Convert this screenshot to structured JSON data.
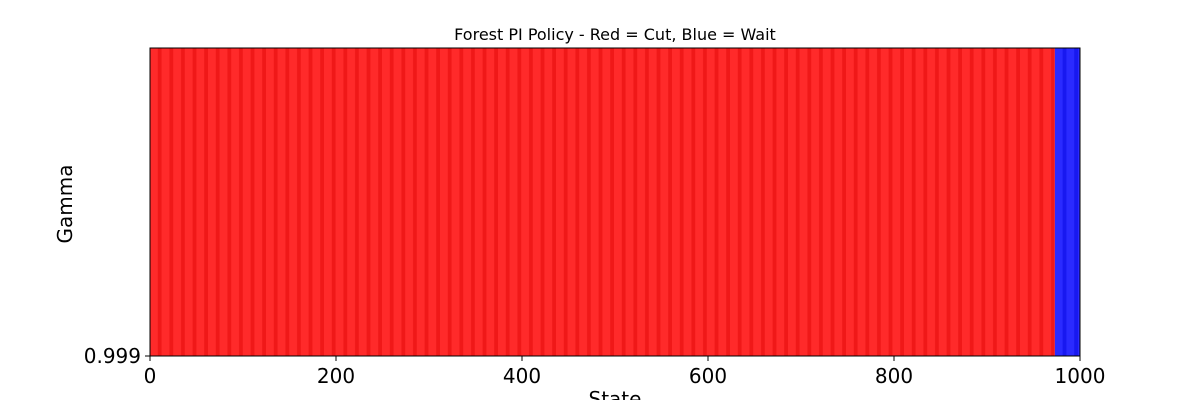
{
  "chart_data": {
    "type": "heatmap",
    "title": "Forest PI Policy - Red = Cut, Blue = Wait",
    "xlabel": "State",
    "ylabel": "Gamma",
    "xlim": [
      0,
      1000
    ],
    "x_ticks": [
      "0",
      "200",
      "400",
      "600",
      "800",
      "1000"
    ],
    "y_ticks": [
      "0.999"
    ],
    "rows": [
      {
        "gamma": "0.999",
        "segments": [
          {
            "action": "Cut",
            "start_state": 0,
            "end_state": 973
          },
          {
            "action": "Wait",
            "start_state": 973,
            "end_state": 1000
          }
        ]
      }
    ],
    "colors": {
      "Cut": "#ff2020",
      "Wait": "#2020ff"
    },
    "grid": false,
    "legend": "none"
  }
}
